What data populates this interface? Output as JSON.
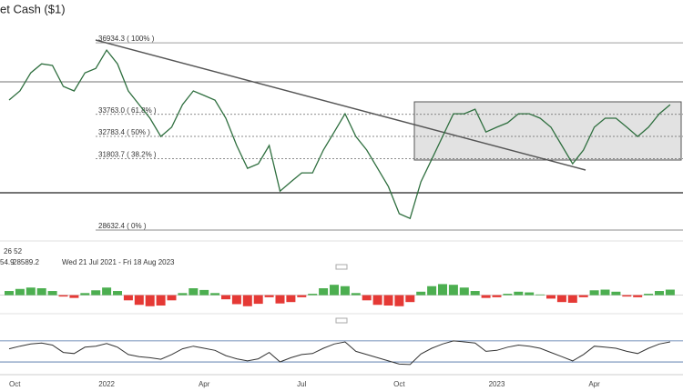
{
  "chart_data": [
    {
      "type": "line",
      "title": "et Cash ($1)",
      "annotations": [
        "26 52",
        "54.9",
        "28589.2",
        "Wed 21 Jul 2021 - Fri 18 Aug 2023"
      ],
      "categories": [
        "Oct",
        null,
        null,
        null,
        null,
        null,
        null,
        null,
        null,
        "2022",
        null,
        null,
        null,
        null,
        null,
        null,
        null,
        null,
        "Apr",
        null,
        null,
        null,
        null,
        null,
        null,
        null,
        null,
        "Jul",
        null,
        null,
        null,
        null,
        null,
        null,
        null,
        null,
        "Oct",
        null,
        null,
        null,
        null,
        null,
        null,
        null,
        null,
        "2023",
        null,
        null,
        null,
        null,
        null,
        null,
        null,
        null,
        "Apr",
        null,
        null,
        null,
        null,
        null,
        null,
        null
      ],
      "values": [
        34395,
        34800,
        35600,
        36000,
        35930,
        35000,
        34800,
        35600,
        35800,
        36610,
        36000,
        34800,
        34190,
        33590,
        32780,
        33190,
        34190,
        34800,
        34600,
        34390,
        33590,
        32380,
        31370,
        31570,
        32380,
        30360,
        30770,
        31170,
        31170,
        32180,
        32980,
        33790,
        32780,
        32180,
        31370,
        30560,
        29360,
        29150,
        30770,
        31770,
        32780,
        33790,
        33790,
        33990,
        32980,
        33190,
        33390,
        33790,
        33790,
        33590,
        33190,
        32380,
        31570,
        32180,
        33190,
        33590,
        33590,
        33190,
        32780,
        33190,
        33790,
        34190
      ],
      "color": "#2f6f3f",
      "levels": [
        {
          "value": 36934.3,
          "label": "36934.3 ( 100% )"
        },
        {
          "value": 33763.0,
          "label": "33763.0 ( 61.8% )"
        },
        {
          "value": 32783.4,
          "label": "32783.4 ( 50% )"
        },
        {
          "value": 31803.7,
          "label": "31803.7 ( 38.2% )"
        },
        {
          "value": 28632.4,
          "label": "28632.4 ( 0% )"
        }
      ],
      "ylim": [
        28150,
        38830
      ]
    },
    {
      "type": "macd",
      "values": [
        120,
        180,
        220,
        200,
        120,
        -40,
        -80,
        60,
        140,
        220,
        120,
        -150,
        -280,
        -320,
        -300,
        -150,
        60,
        200,
        150,
        60,
        -120,
        -260,
        -320,
        -250,
        -60,
        -240,
        -200,
        -60,
        40,
        200,
        300,
        260,
        60,
        -150,
        -280,
        -300,
        -320,
        -200,
        100,
        260,
        320,
        300,
        220,
        120,
        -80,
        -60,
        40,
        100,
        80,
        20,
        -100,
        -200,
        -220,
        -60,
        140,
        160,
        100,
        -40,
        -60,
        40,
        120,
        160
      ],
      "colors": [
        "#4caf50",
        "#e53935"
      ],
      "ylim": [
        -300,
        700
      ]
    },
    {
      "type": "rsi",
      "values": [
        55,
        60,
        64,
        66,
        62,
        48,
        46,
        58,
        60,
        65,
        58,
        44,
        40,
        38,
        35,
        44,
        55,
        60,
        56,
        52,
        42,
        36,
        32,
        36,
        48,
        30,
        38,
        44,
        46,
        56,
        64,
        68,
        50,
        44,
        38,
        32,
        26,
        25,
        45,
        56,
        64,
        70,
        68,
        66,
        50,
        52,
        58,
        62,
        60,
        56,
        48,
        40,
        32,
        44,
        60,
        58,
        56,
        50,
        46,
        56,
        64,
        68
      ],
      "color": "#333333",
      "levels": [
        70,
        30
      ],
      "ylim": [
        18,
        87
      ]
    }
  ]
}
